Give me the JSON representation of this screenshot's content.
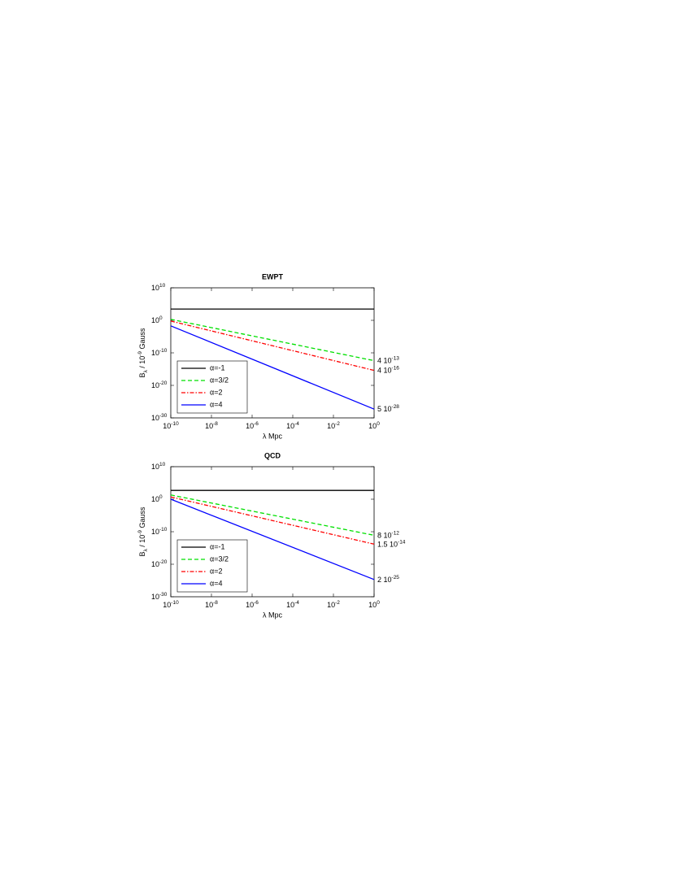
{
  "chart_data": [
    {
      "type": "line",
      "title": "EWPT",
      "xlabel": "λ Mpc",
      "ylabel": {
        "base": "B",
        "sub": "λ",
        "mid": " / 10",
        "sup": "-9",
        "unit": " Gauss"
      },
      "log_x": true,
      "log_y": true,
      "legend": "lower left",
      "x": [
        1e-10,
        1
      ],
      "xlim": [
        1e-10,
        1
      ],
      "xticks": [
        {
          "value": 1e-10,
          "label": "10",
          "sup": "-10"
        },
        {
          "value": 1e-08,
          "label": "10",
          "sup": "-8"
        },
        {
          "value": 1e-06,
          "label": "10",
          "sup": "-6"
        },
        {
          "value": 0.0001,
          "label": "10",
          "sup": "-4"
        },
        {
          "value": 0.01,
          "label": "10",
          "sup": "-2"
        },
        {
          "value": 1,
          "label": "10",
          "sup": "0"
        }
      ],
      "ylim": [
        1e-30,
        10000000000.0
      ],
      "yticks": [
        {
          "value": 1e-30,
          "label": "10",
          "sup": "-30"
        },
        {
          "value": 1e-20,
          "label": "10",
          "sup": "-20"
        },
        {
          "value": 1e-10,
          "label": "10",
          "sup": "-10"
        },
        {
          "value": 1,
          "label": "10",
          "sup": "0"
        },
        {
          "value": 10000000000.0,
          "label": "10",
          "sup": "10"
        }
      ],
      "series": [
        {
          "name": "α=-1",
          "color": "#000000",
          "linestyle": "solid",
          "values": [
            3000,
            3000
          ]
        },
        {
          "name": "α=3/2",
          "color": "#00e000",
          "linestyle": "dashed",
          "values": [
            2,
            4e-13
          ]
        },
        {
          "name": "α=2",
          "color": "#ff0000",
          "linestyle": "dashdot",
          "values": [
            0.6,
            4e-16
          ]
        },
        {
          "name": "α=4",
          "color": "#0000ff",
          "linestyle": "solid",
          "values": [
            0.02,
            5e-28
          ]
        }
      ],
      "annotations": [
        {
          "y": 4e-13,
          "label": "4 10",
          "sup": "-13"
        },
        {
          "y": 4e-16,
          "label": "4 10",
          "sup": "-16"
        },
        {
          "y": 5e-28,
          "label": "5 10",
          "sup": "-28"
        }
      ]
    },
    {
      "type": "line",
      "title": "QCD",
      "xlabel": "λ Mpc",
      "ylabel": {
        "base": "B",
        "sub": "λ",
        "mid": " / 10",
        "sup": "-9",
        "unit": " Gauss"
      },
      "log_x": true,
      "log_y": true,
      "legend": "lower left",
      "x": [
        1e-10,
        1
      ],
      "xlim": [
        1e-10,
        1
      ],
      "xticks": [
        {
          "value": 1e-10,
          "label": "10",
          "sup": "-10"
        },
        {
          "value": 1e-08,
          "label": "10",
          "sup": "-8"
        },
        {
          "value": 1e-06,
          "label": "10",
          "sup": "-6"
        },
        {
          "value": 0.0001,
          "label": "10",
          "sup": "-4"
        },
        {
          "value": 0.01,
          "label": "10",
          "sup": "-2"
        },
        {
          "value": 1,
          "label": "10",
          "sup": "0"
        }
      ],
      "ylim": [
        1e-30,
        10000000000.0
      ],
      "yticks": [
        {
          "value": 1e-30,
          "label": "10",
          "sup": "-30"
        },
        {
          "value": 1e-20,
          "label": "10",
          "sup": "-20"
        },
        {
          "value": 1e-10,
          "label": "10",
          "sup": "-10"
        },
        {
          "value": 1,
          "label": "10",
          "sup": "0"
        },
        {
          "value": 10000000000.0,
          "label": "10",
          "sup": "10"
        }
      ],
      "series": [
        {
          "name": "α=-1",
          "color": "#000000",
          "linestyle": "solid",
          "values": [
            500,
            500
          ]
        },
        {
          "name": "α=3/2",
          "color": "#00e000",
          "linestyle": "dashed",
          "values": [
            20,
            8e-12
          ]
        },
        {
          "name": "α=2",
          "color": "#ff0000",
          "linestyle": "dashdot",
          "values": [
            5,
            1.5e-14
          ]
        },
        {
          "name": "α=4",
          "color": "#0000ff",
          "linestyle": "solid",
          "values": [
            1,
            2e-25
          ]
        }
      ],
      "annotations": [
        {
          "y": 8e-12,
          "label": "8 10",
          "sup": "-12"
        },
        {
          "y": 1.5e-14,
          "label": "1.5 10",
          "sup": "-14"
        },
        {
          "y": 2e-25,
          "label": "2 10",
          "sup": "-25"
        }
      ]
    }
  ]
}
